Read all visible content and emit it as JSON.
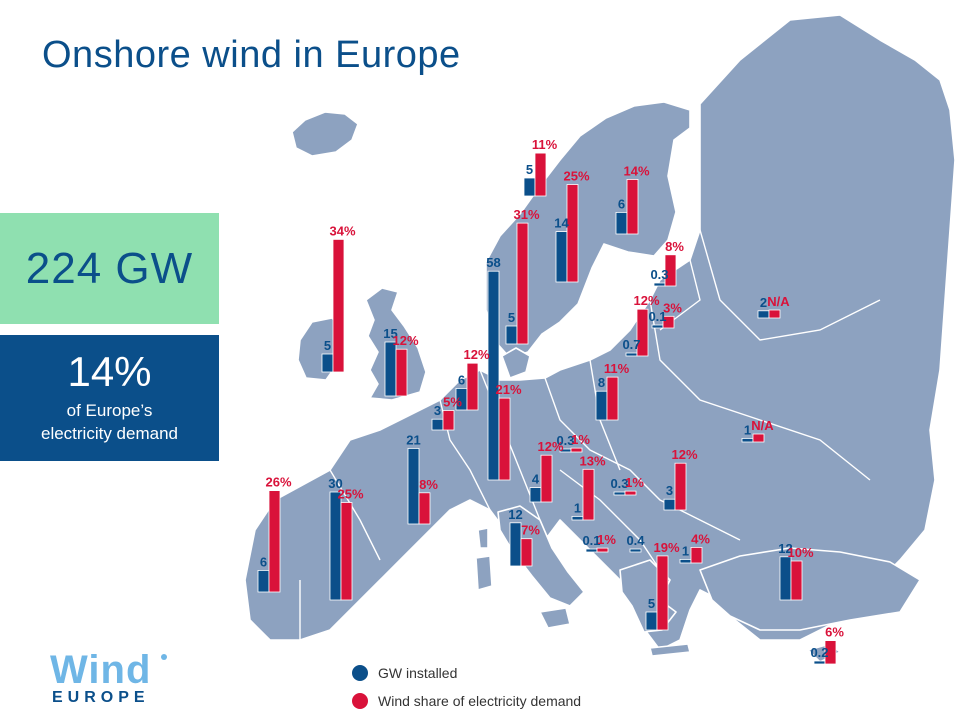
{
  "title": "Onshore wind in Europe",
  "summary": {
    "capacity": "224 GW",
    "share": "14%",
    "share_caption_line1": "of Europe’s",
    "share_caption_line2": "electricity demand"
  },
  "legend": {
    "gw_label": "GW installed",
    "share_label": "Wind share of electricity demand"
  },
  "logo": {
    "word": "Wind",
    "sub": "EUROPE"
  },
  "colors": {
    "gw": "#0b4f8a",
    "share": "#d9123a",
    "land": "#8da2c0",
    "border": "#ffffff",
    "sea": "#ffffff"
  },
  "chart_data": {
    "type": "bar",
    "series": [
      {
        "name": "GW installed",
        "unit": "GW"
      },
      {
        "name": "Wind share of electricity demand",
        "unit": "%"
      }
    ],
    "countries": [
      {
        "gw": "5",
        "gw_v": 5,
        "share": "11%",
        "share_v": 11
      },
      {
        "gw": "14",
        "gw_v": 14,
        "share": "25%",
        "share_v": 25
      },
      {
        "gw": "6",
        "gw_v": 6,
        "share": "14%",
        "share_v": 14
      },
      {
        "gw": "0.3",
        "gw_v": 0.3,
        "share": "8%",
        "share_v": 8
      },
      {
        "gw": "5",
        "gw_v": 5,
        "share": "34%",
        "share_v": 34
      },
      {
        "gw": "58",
        "gw_v": 58,
        "share": "21%",
        "share_v": 21
      },
      {
        "gw": "5",
        "gw_v": 5,
        "share": "31%",
        "share_v": 31
      },
      {
        "gw": "0.1",
        "gw_v": 0.1,
        "share": "3%",
        "share_v": 3
      },
      {
        "gw": "0.7",
        "gw_v": 0.7,
        "share": "12%",
        "share_v": 12
      },
      {
        "gw": "2",
        "gw_v": 2,
        "share": "N/A",
        "share_v": 0
      },
      {
        "gw": "15",
        "gw_v": 15,
        "share": "12%",
        "share_v": 12
      },
      {
        "gw": "6",
        "gw_v": 6,
        "share": "12%",
        "share_v": 12
      },
      {
        "gw": "8",
        "gw_v": 8,
        "share": "11%",
        "share_v": 11
      },
      {
        "gw": "3",
        "gw_v": 3,
        "share": "5%",
        "share_v": 5
      },
      {
        "gw": "1",
        "gw_v": 1,
        "share": "N/A",
        "share_v": 0
      },
      {
        "gw": "0.3",
        "gw_v": 0.3,
        "share": "1%",
        "share_v": 1
      },
      {
        "gw": "21",
        "gw_v": 21,
        "share": "8%",
        "share_v": 8
      },
      {
        "gw": "4",
        "gw_v": 4,
        "share": "12%",
        "share_v": 12
      },
      {
        "gw": "0.3",
        "gw_v": 0.3,
        "share": "1%",
        "share_v": 1
      },
      {
        "gw": "3",
        "gw_v": 3,
        "share": "12%",
        "share_v": 12
      },
      {
        "gw": "1",
        "gw_v": 1,
        "share": "13%",
        "share_v": 13
      },
      {
        "gw": "6",
        "gw_v": 6,
        "share": "26%",
        "share_v": 26
      },
      {
        "gw": "30",
        "gw_v": 30,
        "share": "25%",
        "share_v": 25
      },
      {
        "gw": "12",
        "gw_v": 12,
        "share": "7%",
        "share_v": 7
      },
      {
        "gw": "0.1",
        "gw_v": 0.1,
        "share": "1%",
        "share_v": 1
      },
      {
        "gw": "0.4",
        "gw_v": 0.4,
        "share": "",
        "share_v": 0
      },
      {
        "gw": "1",
        "gw_v": 1,
        "share": "4%",
        "share_v": 4
      },
      {
        "gw": "12",
        "gw_v": 12,
        "share": "10%",
        "share_v": 10
      },
      {
        "gw": "5",
        "gw_v": 5,
        "share": "19%",
        "share_v": 19
      },
      {
        "gw": "0.2",
        "gw_v": 0.2,
        "share": "6%",
        "share_v": 6
      }
    ]
  }
}
